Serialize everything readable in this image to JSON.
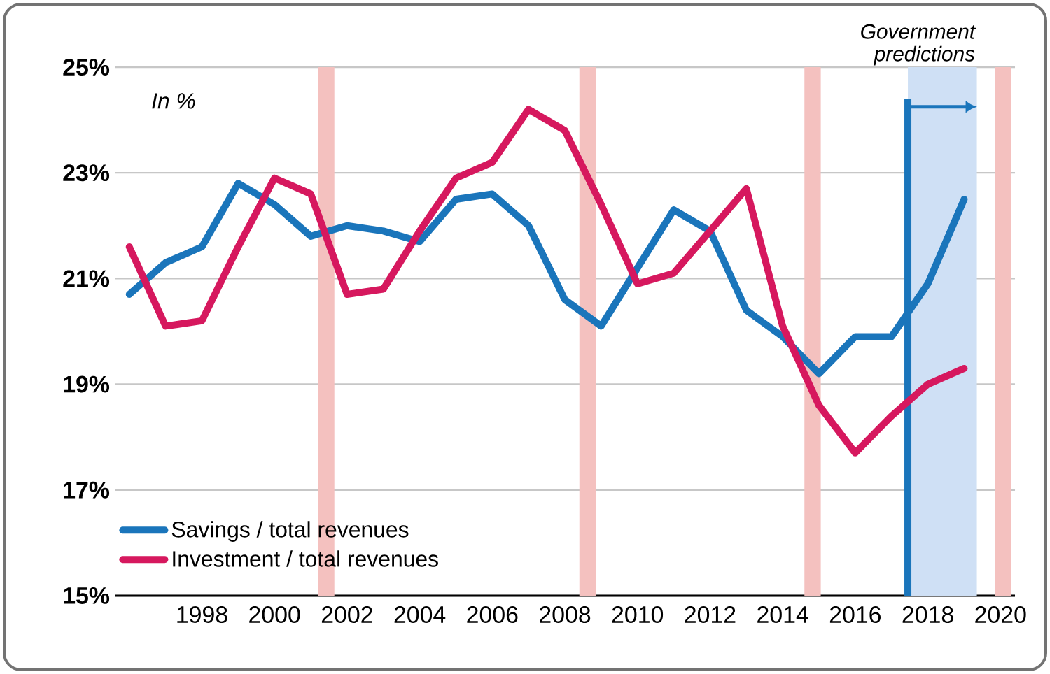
{
  "chart_data": {
    "type": "line",
    "x": [
      1996,
      1997,
      1998,
      1999,
      2000,
      2001,
      2002,
      2003,
      2004,
      2005,
      2006,
      2007,
      2008,
      2009,
      2010,
      2011,
      2012,
      2013,
      2014,
      2015,
      2016,
      2017,
      2018,
      2019
    ],
    "series": [
      {
        "name": "Savings / total revenues",
        "color": "#1a75bb",
        "values": [
          20.7,
          21.3,
          21.6,
          22.8,
          22.4,
          21.8,
          22.0,
          21.9,
          21.7,
          22.5,
          22.6,
          22.0,
          20.6,
          20.1,
          21.2,
          22.3,
          21.9,
          20.4,
          19.9,
          19.2,
          19.9,
          19.9,
          20.9,
          22.5
        ]
      },
      {
        "name": "Investment / total revenues",
        "color": "#d6185e",
        "values": [
          21.6,
          20.1,
          20.2,
          21.6,
          22.9,
          22.6,
          20.7,
          20.8,
          21.9,
          22.9,
          23.2,
          24.2,
          23.8,
          22.4,
          20.9,
          21.1,
          21.9,
          22.7,
          20.1,
          18.6,
          17.7,
          18.4,
          19.0,
          19.3
        ]
      }
    ],
    "xlim": [
      1995.6,
      2020.4
    ],
    "xticks": [
      1998,
      2000,
      2002,
      2004,
      2006,
      2008,
      2010,
      2012,
      2014,
      2016,
      2018,
      2020
    ],
    "ylim": [
      15,
      25
    ],
    "yticks": [
      {
        "value": 15,
        "label": "15%"
      },
      {
        "value": 17,
        "label": "17%"
      },
      {
        "value": 19,
        "label": "19%"
      },
      {
        "value": 21,
        "label": "21%"
      },
      {
        "value": 23,
        "label": "23%"
      },
      {
        "value": 25,
        "label": "25%"
      }
    ],
    "grid": "y",
    "legend": "bottom left",
    "marker": "none",
    "line_style": "solid",
    "annotations": [
      "In %"
    ],
    "bands": [
      {
        "axis": "x",
        "from": 2001.2,
        "to": 2001.65,
        "color": "#f4c1bf"
      },
      {
        "axis": "x",
        "from": 2008.4,
        "to": 2008.85,
        "color": "#f4c1bf"
      },
      {
        "axis": "x",
        "from": 2014.6,
        "to": 2015.05,
        "color": "#f4c1bf"
      },
      {
        "axis": "x",
        "from": 2019.85,
        "to": 2020.3,
        "color": "#f4c1bf"
      },
      {
        "axis": "x",
        "from": 2017.45,
        "to": 2019.35,
        "color": "#cfe0f5",
        "label": "Government predictions"
      }
    ],
    "ref_lines": [
      {
        "axis": "x",
        "value": 2017.45,
        "color": "#1a75bb"
      }
    ]
  }
}
